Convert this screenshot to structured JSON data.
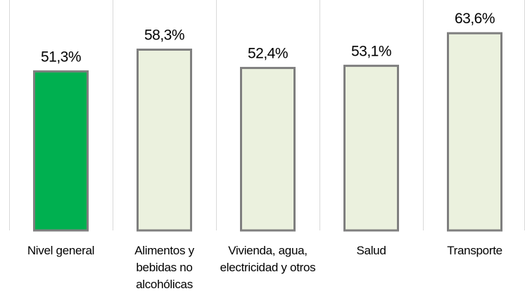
{
  "chart_data": {
    "type": "bar",
    "categories": [
      "Nivel general",
      "Alimentos y bebidas no alcohólicas",
      "Vivienda, agua, electricidad y otros",
      "Salud",
      "Transporte"
    ],
    "values": [
      51.3,
      58.3,
      52.4,
      53.1,
      63.6
    ],
    "value_labels": [
      "51,3%",
      "58,3%",
      "52,4%",
      "53,1%",
      "63,6%"
    ],
    "colors": [
      "#00b050",
      "#ebf1de",
      "#ebf1de",
      "#ebf1de",
      "#ebf1de"
    ],
    "edge_color": "#7f7f7f"
  }
}
